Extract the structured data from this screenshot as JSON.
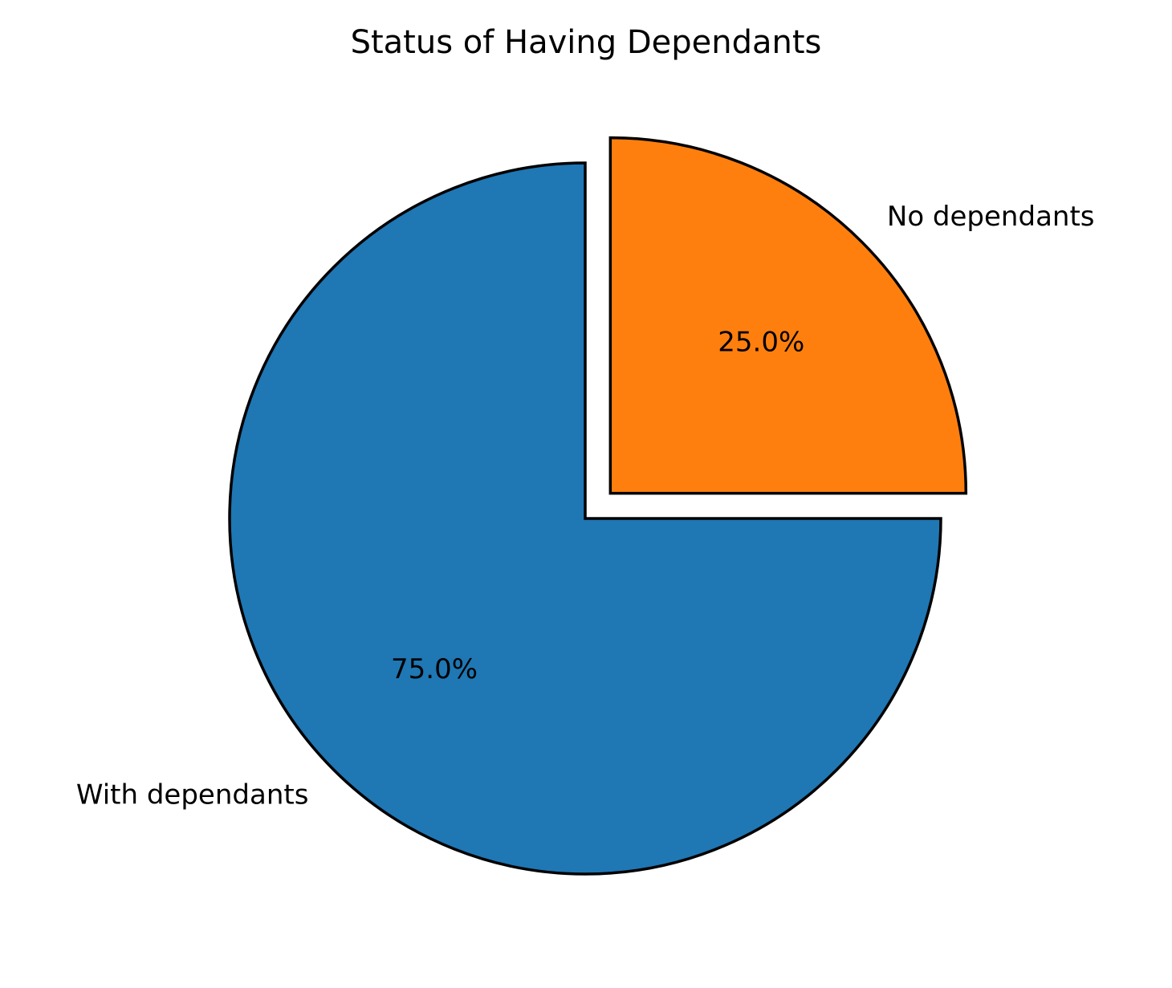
{
  "chart_data": {
    "type": "pie",
    "title": "Status of Having Dependants",
    "start_angle": "top",
    "direction": "clockwise",
    "slices": [
      {
        "label": "No dependants",
        "value": 25.0,
        "pct_label": "25.0%",
        "color": "#ff7f0e",
        "exploded": true
      },
      {
        "label": "With dependants",
        "value": 75.0,
        "pct_label": "75.0%",
        "color": "#1f77b4",
        "exploded": false
      }
    ]
  }
}
